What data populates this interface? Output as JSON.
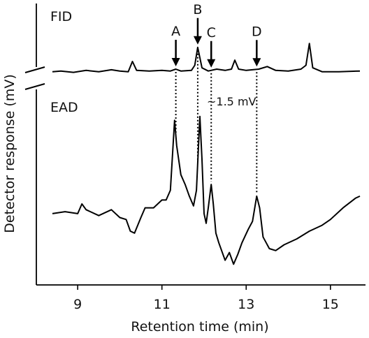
{
  "chart_data": {
    "type": "line",
    "xlabel": "Retention time (min)",
    "ylabel": "Detector response (mV)",
    "xlim": [
      8.4,
      15.7
    ],
    "xticks": [
      9,
      11,
      13,
      15
    ],
    "grid": false,
    "scale_label": "~1.5 mV",
    "series": [
      {
        "name": "FID",
        "ylim": [
          -0.4,
          4.5
        ],
        "points": [
          [
            8.4,
            0.0
          ],
          [
            8.6,
            0.05
          ],
          [
            8.9,
            -0.05
          ],
          [
            9.2,
            0.1
          ],
          [
            9.5,
            0.0
          ],
          [
            9.8,
            0.15
          ],
          [
            10.0,
            0.05
          ],
          [
            10.2,
            0.0
          ],
          [
            10.3,
            0.8
          ],
          [
            10.4,
            0.1
          ],
          [
            10.7,
            0.05
          ],
          [
            11.0,
            0.1
          ],
          [
            11.2,
            0.05
          ],
          [
            11.33,
            0.2
          ],
          [
            11.45,
            0.05
          ],
          [
            11.7,
            0.1
          ],
          [
            11.78,
            0.5
          ],
          [
            11.85,
            1.9
          ],
          [
            11.95,
            0.3
          ],
          [
            12.1,
            0.05
          ],
          [
            12.3,
            0.2
          ],
          [
            12.5,
            0.1
          ],
          [
            12.65,
            0.2
          ],
          [
            12.73,
            0.9
          ],
          [
            12.82,
            0.2
          ],
          [
            13.0,
            0.1
          ],
          [
            13.3,
            0.2
          ],
          [
            13.5,
            0.4
          ],
          [
            13.7,
            0.1
          ],
          [
            14.0,
            0.05
          ],
          [
            14.3,
            0.2
          ],
          [
            14.42,
            0.5
          ],
          [
            14.5,
            2.2
          ],
          [
            14.58,
            0.3
          ],
          [
            14.8,
            0.0
          ],
          [
            15.2,
            0.0
          ],
          [
            15.7,
            0.05
          ]
        ]
      },
      {
        "name": "EAD",
        "ylim": [
          -3.2,
          5.6
        ],
        "points": [
          [
            8.4,
            0.0
          ],
          [
            8.7,
            0.1
          ],
          [
            9.0,
            0.0
          ],
          [
            9.1,
            0.5
          ],
          [
            9.2,
            0.2
          ],
          [
            9.5,
            -0.1
          ],
          [
            9.8,
            0.2
          ],
          [
            10.0,
            -0.2
          ],
          [
            10.15,
            -0.3
          ],
          [
            10.25,
            -0.9
          ],
          [
            10.35,
            -1.0
          ],
          [
            10.5,
            -0.2
          ],
          [
            10.6,
            0.3
          ],
          [
            10.8,
            0.3
          ],
          [
            11.0,
            0.7
          ],
          [
            11.1,
            0.7
          ],
          [
            11.2,
            1.2
          ],
          [
            11.3,
            4.8
          ],
          [
            11.35,
            3.5
          ],
          [
            11.45,
            2.0
          ],
          [
            11.55,
            1.5
          ],
          [
            11.65,
            0.9
          ],
          [
            11.75,
            0.4
          ],
          [
            11.82,
            1.2
          ],
          [
            11.9,
            5.0
          ],
          [
            11.95,
            2.8
          ],
          [
            12.0,
            0.0
          ],
          [
            12.05,
            -0.5
          ],
          [
            12.1,
            0.3
          ],
          [
            12.17,
            1.5
          ],
          [
            12.22,
            0.5
          ],
          [
            12.28,
            -1.0
          ],
          [
            12.35,
            -1.5
          ],
          [
            12.5,
            -2.4
          ],
          [
            12.6,
            -2.0
          ],
          [
            12.7,
            -2.6
          ],
          [
            12.8,
            -2.1
          ],
          [
            12.9,
            -1.5
          ],
          [
            13.05,
            -0.8
          ],
          [
            13.15,
            -0.4
          ],
          [
            13.25,
            0.9
          ],
          [
            13.32,
            0.3
          ],
          [
            13.4,
            -1.2
          ],
          [
            13.55,
            -1.8
          ],
          [
            13.7,
            -1.9
          ],
          [
            13.9,
            -1.6
          ],
          [
            14.2,
            -1.3
          ],
          [
            14.5,
            -0.9
          ],
          [
            14.8,
            -0.6
          ],
          [
            15.0,
            -0.3
          ],
          [
            15.3,
            0.3
          ],
          [
            15.6,
            0.8
          ],
          [
            15.7,
            0.9
          ]
        ]
      }
    ],
    "annotations": [
      {
        "label": "A",
        "x": 11.33
      },
      {
        "label": "B",
        "x": 11.85
      },
      {
        "label": "C",
        "x": 12.17
      },
      {
        "label": "D",
        "x": 13.25
      }
    ]
  }
}
